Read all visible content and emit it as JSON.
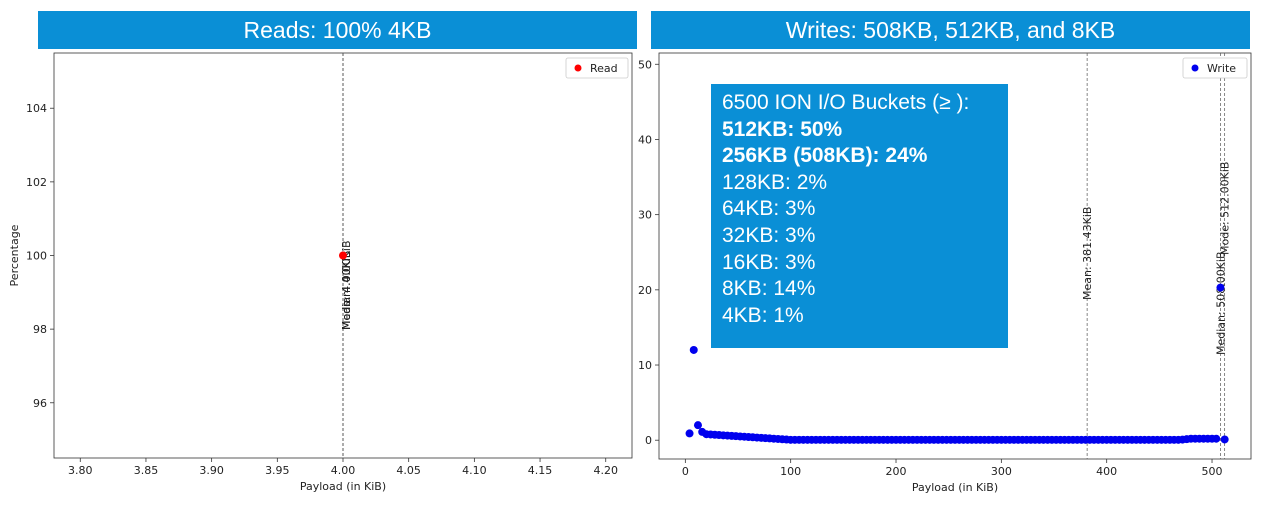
{
  "banners": {
    "left": "Reads: 100% 4KB",
    "right": "Writes: 508KB, 512KB, and 8KB"
  },
  "infobox": {
    "lines": [
      {
        "text": "6500 ION I/O Buckets (≥ ):",
        "bold": false
      },
      {
        "text": "512KB: 50%",
        "bold": true
      },
      {
        "text": "256KB (508KB): 24%",
        "bold": true
      },
      {
        "text": "128KB: 2%",
        "bold": false
      },
      {
        "text": "64KB: 3%",
        "bold": false
      },
      {
        "text": "32KB: 3%",
        "bold": false
      },
      {
        "text": "16KB: 3%",
        "bold": false
      },
      {
        "text": "8KB: 14%",
        "bold": false
      },
      {
        "text": "4KB: 1%",
        "bold": false
      }
    ]
  },
  "colors": {
    "banner": "#0a8fd6",
    "read": "#ff0000",
    "write": "#0000ee"
  },
  "chart_data": [
    {
      "type": "scatter",
      "xlabel": "Payload (in KiB)",
      "ylabel": "Percentage",
      "xlim": [
        3.78,
        4.22
      ],
      "ylim": [
        94.5,
        105.5
      ],
      "xticks": [
        3.8,
        3.85,
        3.9,
        3.95,
        4.0,
        4.05,
        4.1,
        4.15,
        4.2
      ],
      "xtick_labels": [
        "3.80",
        "3.85",
        "3.90",
        "3.95",
        "4.00",
        "4.05",
        "4.10",
        "4.15",
        "4.20"
      ],
      "yticks": [
        96,
        98,
        100,
        102,
        104
      ],
      "ytick_labels": [
        "96",
        "98",
        "100",
        "102",
        "104"
      ],
      "legend": {
        "position": "top-right",
        "entries": [
          "Read"
        ]
      },
      "series": [
        {
          "name": "Read",
          "color": "#ff0000",
          "points": [
            [
              4.0,
              100.0
            ]
          ]
        }
      ],
      "vlines": [
        {
          "x": 4.0,
          "label": "Mean: 4.00KiB"
        },
        {
          "x": 4.0,
          "label": "Median: 4.00KiB"
        },
        {
          "x": 4.0,
          "label": "Mode: 4.00KiB"
        }
      ]
    },
    {
      "type": "scatter",
      "xlabel": "Payload (in KiB)",
      "ylabel": "",
      "xlim": [
        -25,
        537
      ],
      "ylim": [
        -2.5,
        51.5
      ],
      "xticks": [
        0,
        100,
        200,
        300,
        400,
        500
      ],
      "xtick_labels": [
        "0",
        "100",
        "200",
        "300",
        "400",
        "500"
      ],
      "yticks": [
        0,
        10,
        20,
        30,
        40,
        50
      ],
      "ytick_labels": [
        "0",
        "10",
        "20",
        "30",
        "40",
        "50"
      ],
      "legend": {
        "position": "top-right",
        "entries": [
          "Write"
        ]
      },
      "series": [
        {
          "name": "Write",
          "color": "#0000ee",
          "points": [
            [
              4,
              0.9
            ],
            [
              8,
              12.0
            ],
            [
              12,
              2.0
            ],
            [
              16,
              1.1
            ],
            [
              508,
              20.3
            ],
            [
              512,
              0.1
            ]
          ],
          "tail": {
            "x_start": 20,
            "x_end": 504,
            "step": 4,
            "y_start": 0.8,
            "y_floor": 0.05,
            "y_end": 0.2
          }
        }
      ],
      "vlines": [
        {
          "x": 381.43,
          "label": "Mean: 381.43KiB"
        },
        {
          "x": 508.0,
          "label": "Median: 508.00KiB"
        },
        {
          "x": 512.0,
          "label": "Mode: 512.00KiB"
        }
      ]
    }
  ]
}
